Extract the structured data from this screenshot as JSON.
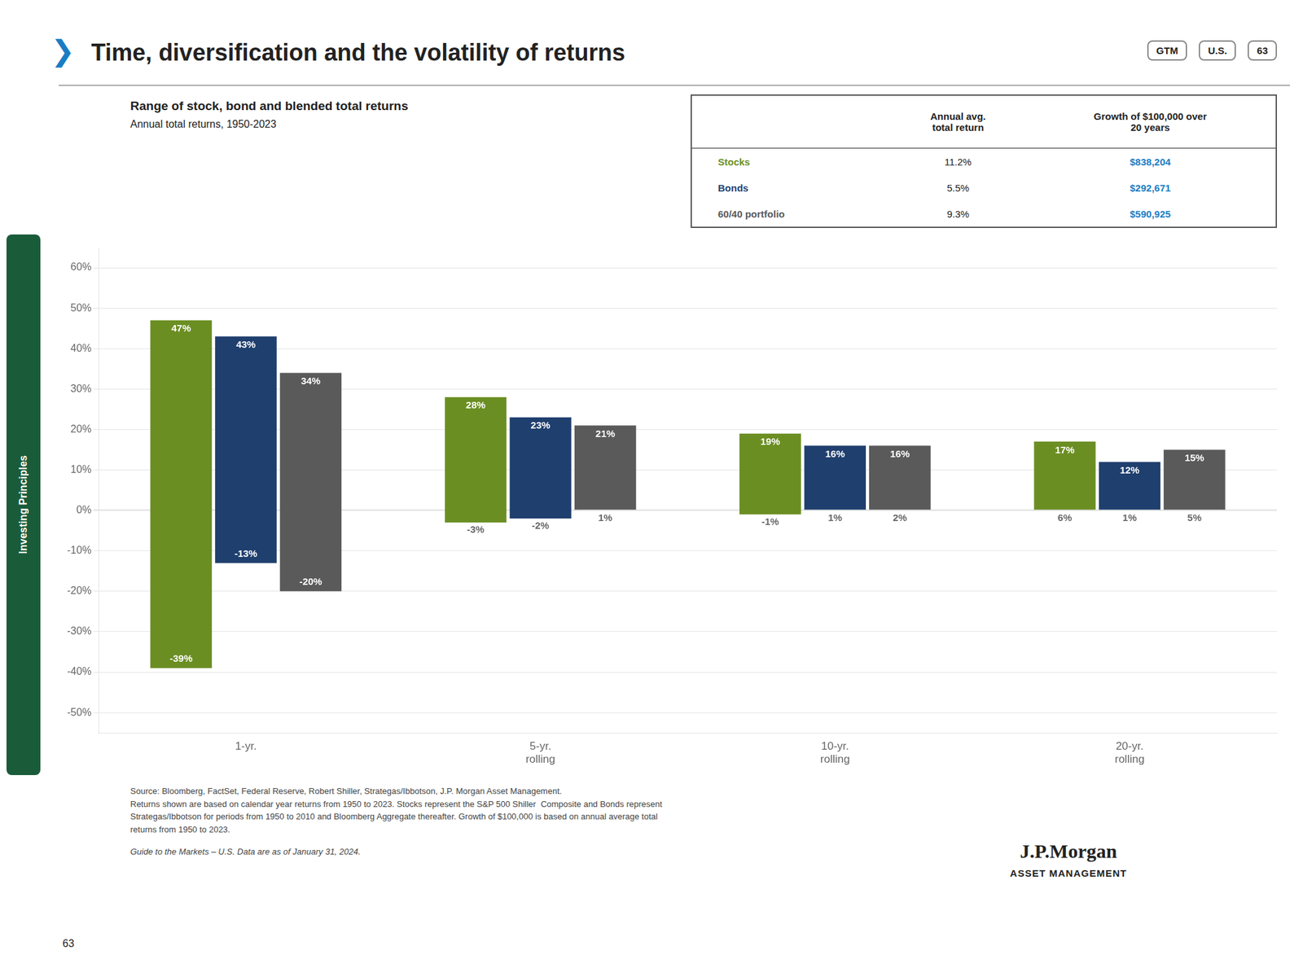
{
  "chart_data": {
    "type": "bar",
    "title": "Range of stock, bond and blended total returns",
    "subtitle": "Annual total returns, 1950-2023",
    "categories": [
      "1-yr.",
      "5-yr.\nrolling",
      "10-yr.\nrolling",
      "20-yr.\nrolling"
    ],
    "series": [
      {
        "name": "Stocks",
        "color": "#6b8e23",
        "values": [
          47,
          28,
          19,
          17
        ],
        "value_labels": [
          "47%",
          "28%",
          "19%",
          "17%"
        ],
        "min_values": [
          -39,
          -3,
          -1,
          6
        ],
        "min_value_labels": [
          "-39%",
          "-3%",
          "-1%",
          "6%"
        ]
      },
      {
        "name": "Bonds",
        "color": "#1f3f6e",
        "values": [
          43,
          23,
          16,
          12
        ],
        "value_labels": [
          "43%",
          "23%",
          "16%",
          "12%"
        ],
        "min_values": [
          -13,
          -2,
          1,
          1
        ],
        "min_value_labels": [
          "-13%",
          "-2%",
          "1%",
          "1%"
        ]
      },
      {
        "name": "60/40 portfolio",
        "color": "#5a5a5a",
        "values": [
          34,
          21,
          16,
          15
        ],
        "value_labels": [
          "34%",
          "21%",
          "16%",
          "15%"
        ],
        "min_values": [
          -20,
          1,
          2,
          5
        ],
        "min_value_labels": [
          "-20%",
          "1%",
          "2%",
          "5%"
        ]
      }
    ],
    "ylim": [
      -55,
      65
    ],
    "yticks": [
      {
        "value": -50,
        "label": "-50%"
      },
      {
        "value": -40,
        "label": "-40%"
      },
      {
        "value": -30,
        "label": "-30%"
      },
      {
        "value": -20,
        "label": "-20%"
      },
      {
        "value": -10,
        "label": "-10%"
      },
      {
        "value": 0,
        "label": "0%"
      },
      {
        "value": 10,
        "label": "10%"
      },
      {
        "value": 20,
        "label": "20%"
      },
      {
        "value": 30,
        "label": "30%"
      },
      {
        "value": 40,
        "label": "40%"
      },
      {
        "value": 50,
        "label": "50%"
      },
      {
        "value": 60,
        "label": "60%"
      }
    ],
    "grid": true,
    "data_labels": true,
    "table": {
      "border_color": "#555555",
      "headers": [
        "Annual avg.\ntotal return",
        "Growth of $100,000 over\n20 years"
      ],
      "rows": [
        {
          "avg": "11.2%",
          "growth": "$838,204",
          "growth_color": "#1a7dc4"
        },
        {
          "avg": "5.5%",
          "growth": "$292,671",
          "growth_color": "#1a7dc4"
        },
        {
          "avg": "9.3%",
          "growth": "$590,925",
          "growth_color": "#1a7dc4"
        }
      ]
    },
    "annotations": {
      "page_title": "Time, diversification and the volatility of returns",
      "marker": {
        "text": "❯",
        "color": "#1a7dc4"
      },
      "badges": [
        "GTM",
        "U.S.",
        "63"
      ],
      "sidebar": {
        "text": "Investing Principles",
        "color": "#1a5c3a"
      },
      "source": "Source: Bloomberg, FactSet, Federal Reserve, Robert Shiller, Strategas/Ibbotson, J.P. Morgan Asset Management.\nReturns shown are based on calendar year returns from 1950 to 2023. Stocks represent the S&P 500 Shiller  Composite and Bonds represent\nStrategas/Ibbotson for periods from 1950 to 2010 and Bloomberg Aggregate thereafter. Growth of $100,000 is based on annual average total\nreturns from 1950 to 2023.",
      "guide": "Guide to the Markets – U.S. Data are as of January 31, 2024.",
      "page_number": "63",
      "logo": [
        "J.P.Morgan",
        "ASSET MANAGEMENT"
      ]
    }
  }
}
